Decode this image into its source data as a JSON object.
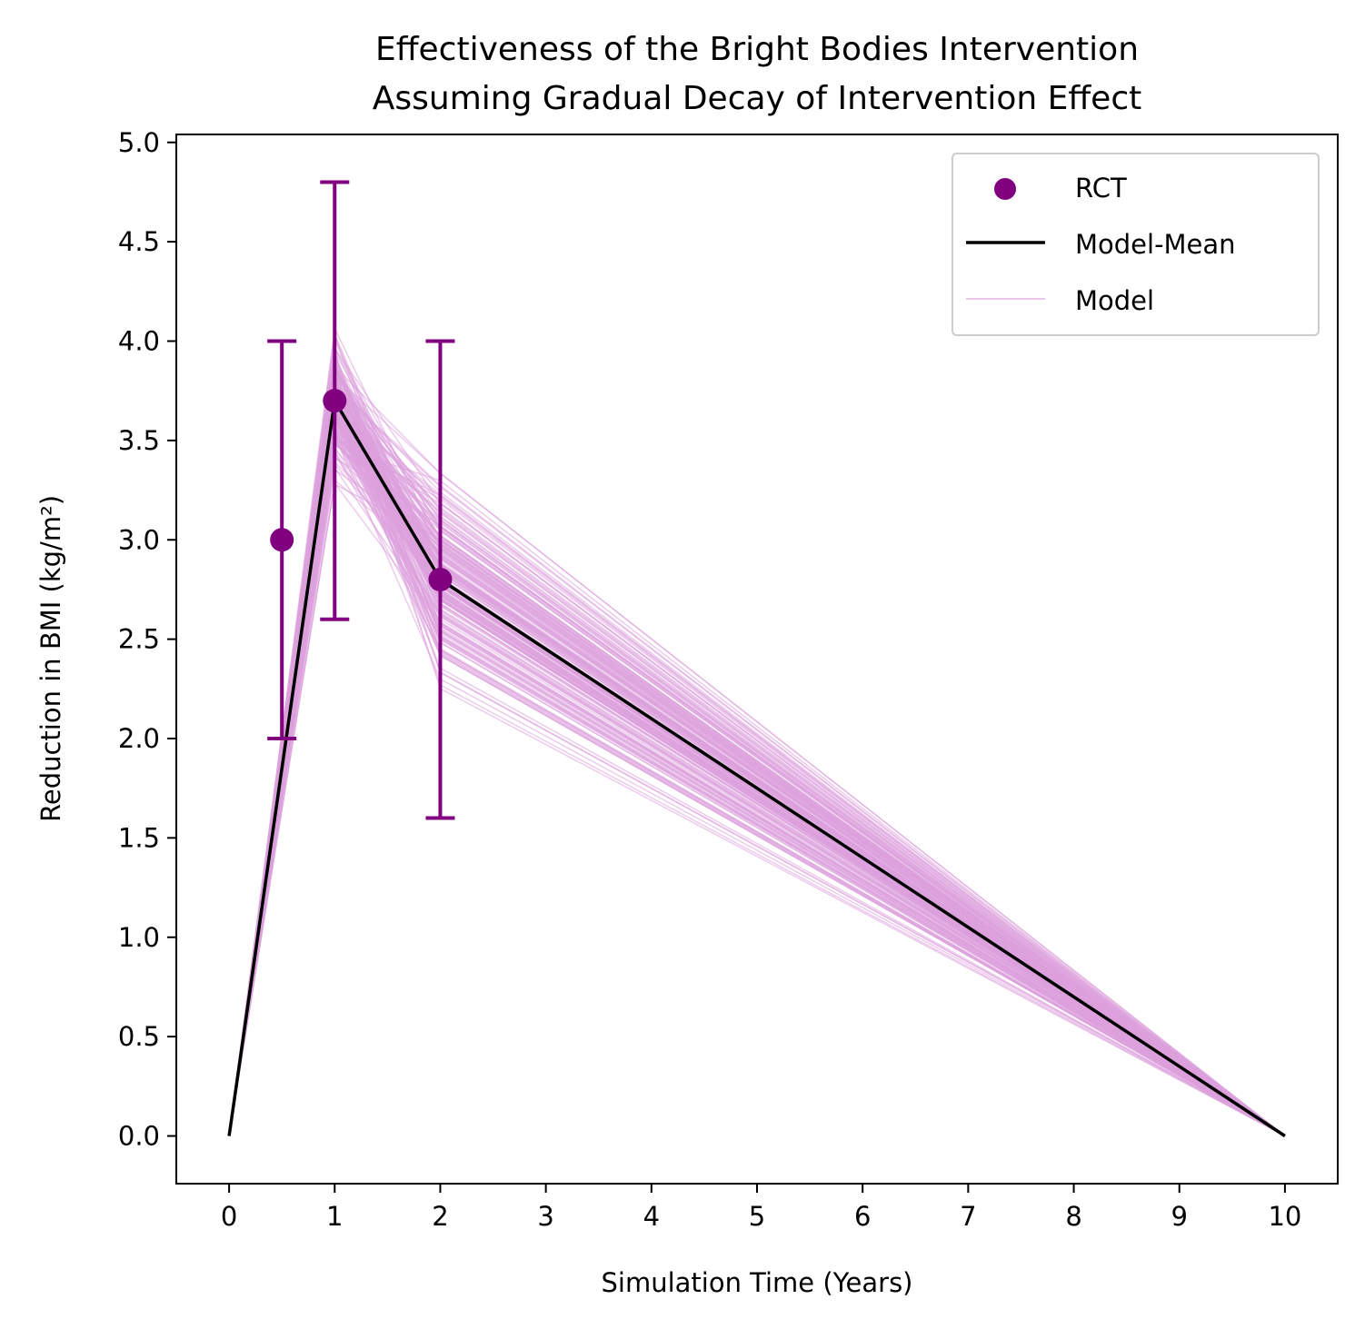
{
  "chart_data": {
    "type": "line",
    "title_line1": "Effectiveness of the Bright Bodies Intervention",
    "title_line2": "Assuming Gradual Decay of Intervention Effect",
    "xlabel": "Simulation Time (Years)",
    "ylabel": "Reduction in BMI (kg/m²)",
    "xlim": [
      -0.5,
      10.5
    ],
    "ylim": [
      -0.24,
      5.04
    ],
    "x_ticks": [
      0,
      1,
      2,
      3,
      4,
      5,
      6,
      7,
      8,
      9,
      10
    ],
    "y_ticks": [
      0.0,
      0.5,
      1.0,
      1.5,
      2.0,
      2.5,
      3.0,
      3.5,
      4.0,
      4.5,
      5.0
    ],
    "y_tick_labels": [
      "0.0",
      "0.5",
      "1.0",
      "1.5",
      "2.0",
      "2.5",
      "3.0",
      "3.5",
      "4.0",
      "4.5",
      "5.0"
    ],
    "legend": {
      "placement": "top-right",
      "entries": [
        "RCT",
        "Model-Mean",
        "Model"
      ]
    },
    "rct": {
      "name": "RCT",
      "color": "#800080",
      "points": [
        {
          "x": 0.5,
          "y": 3.0,
          "err_low": 2.0,
          "err_high": 4.0
        },
        {
          "x": 1,
          "y": 3.7,
          "err_low": 2.6,
          "err_high": 4.8
        },
        {
          "x": 2,
          "y": 2.8,
          "err_low": 1.6,
          "err_high": 4.0
        }
      ]
    },
    "model_mean": {
      "name": "Model-Mean",
      "color": "#000000",
      "x": [
        0,
        1,
        2,
        10
      ],
      "y": [
        0.0,
        3.7,
        2.8,
        0.0
      ]
    },
    "model_runs": {
      "name": "Model",
      "color": "#DDA0DD",
      "count": 200,
      "x": [
        0,
        1,
        2,
        10
      ],
      "y_at_0": 0.0,
      "y_at_10": 0.0,
      "y_at_1_range": [
        2.95,
        4.4
      ],
      "y_at_1_mean": 3.7,
      "y_at_2_range": [
        1.72,
        3.55
      ],
      "y_at_2_mean": 2.8
    }
  }
}
